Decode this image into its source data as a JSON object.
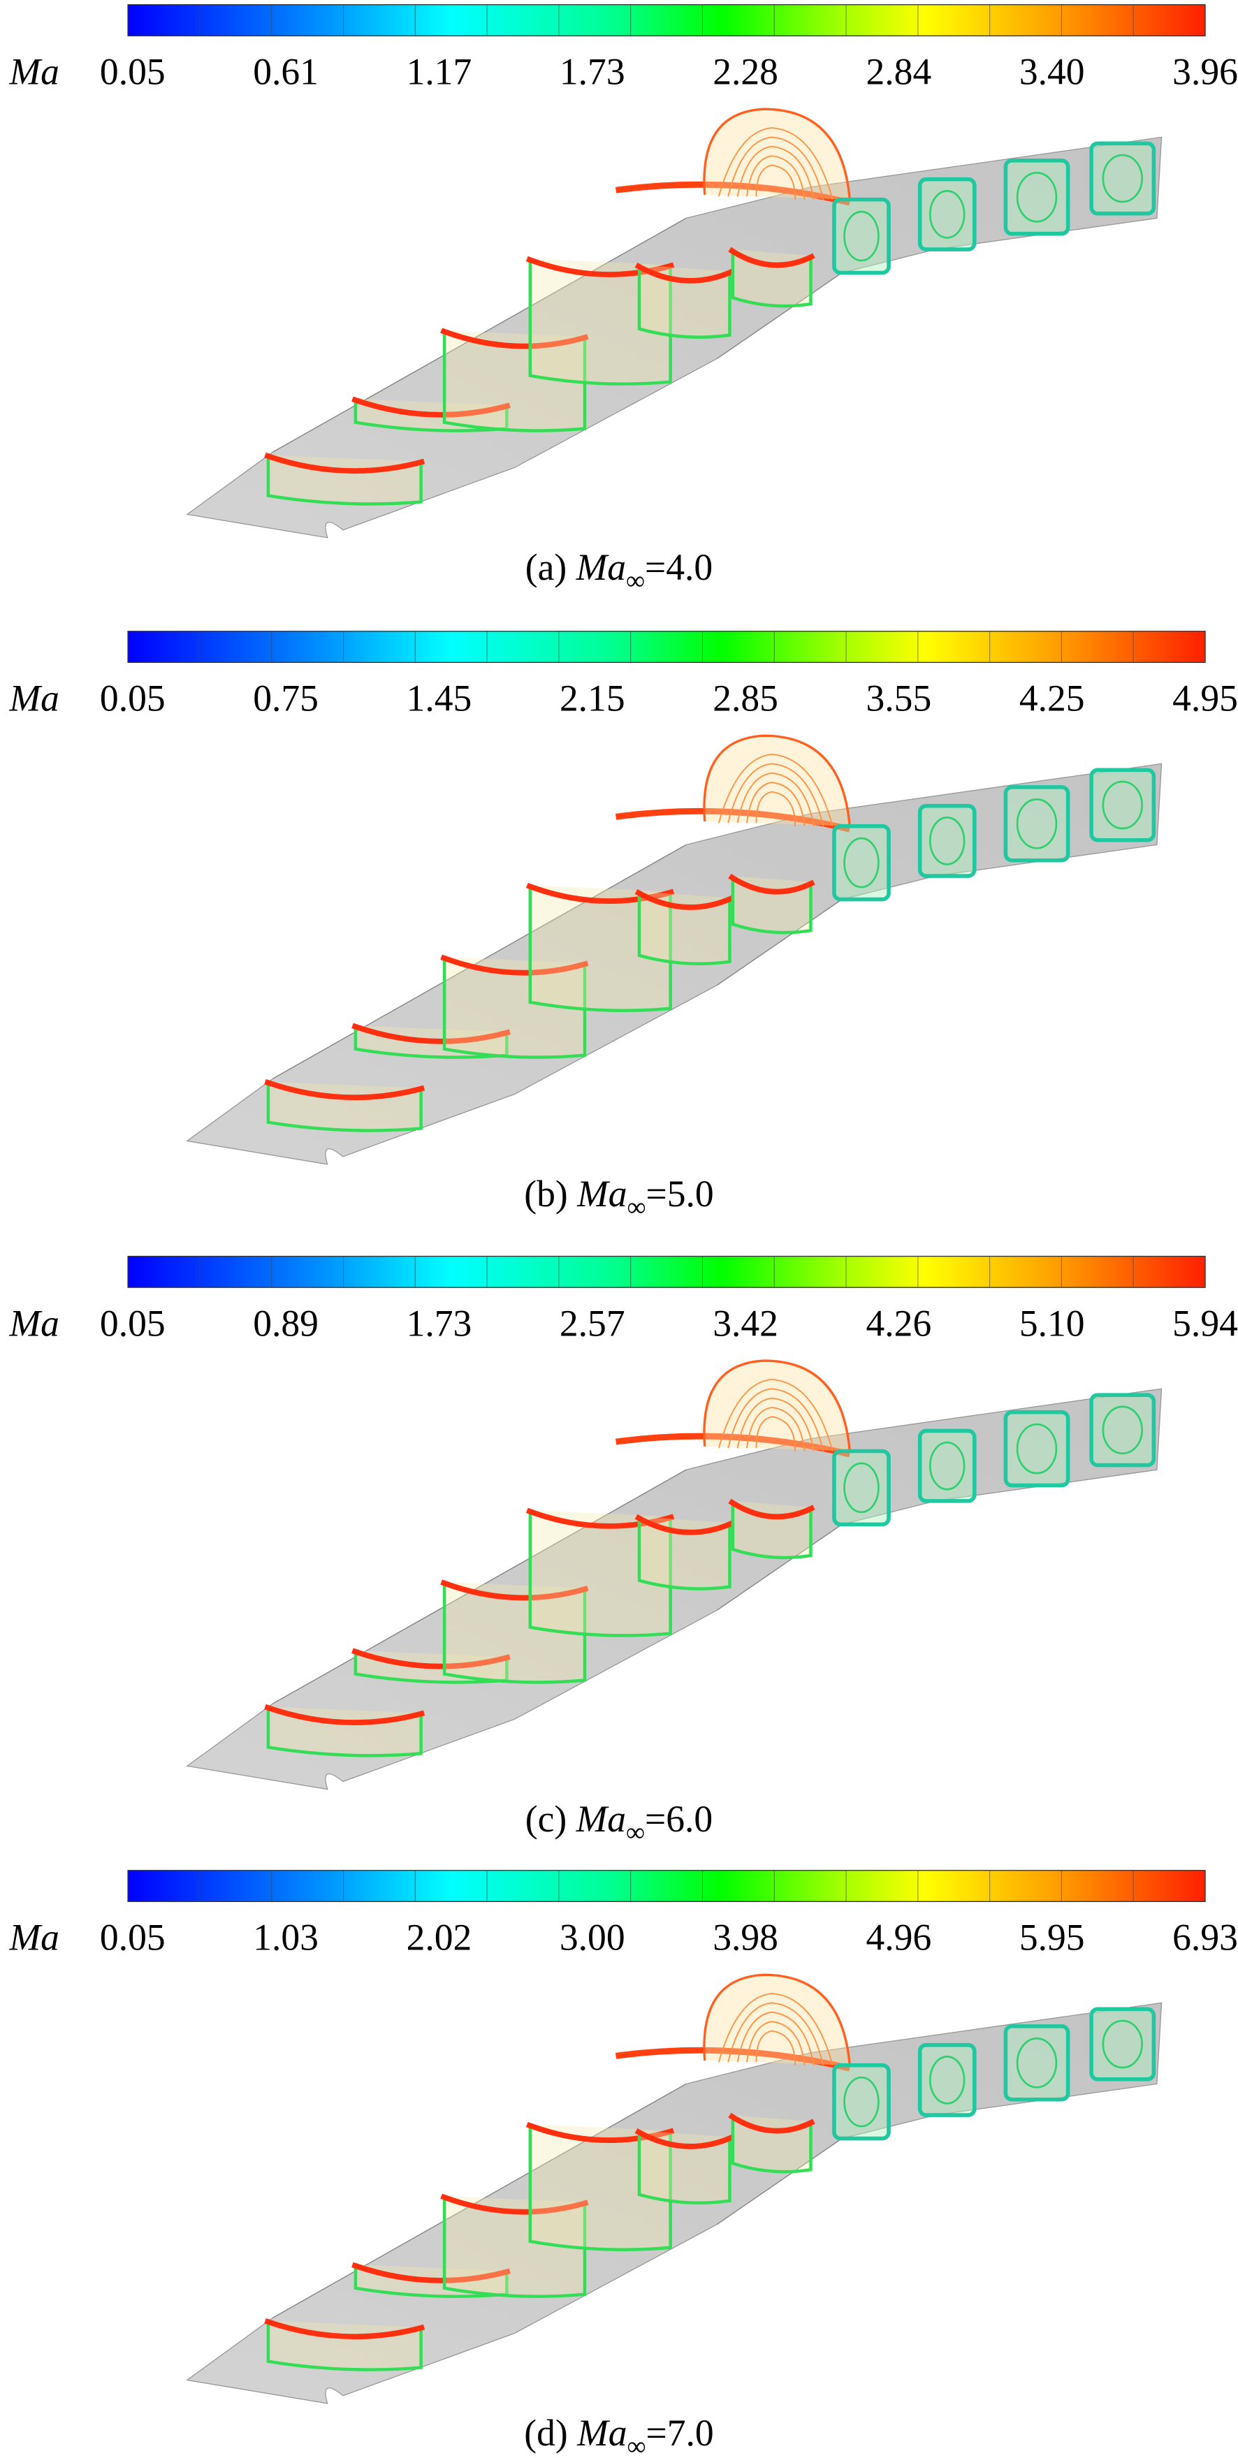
{
  "panels": [
    {
      "colorbar": {
        "label": "Ma",
        "ticks": [
          "0.05",
          "0.61",
          "1.17",
          "1.73",
          "2.28",
          "2.84",
          "3.40",
          "3.96"
        ]
      },
      "caption": {
        "prefix": "(a)",
        "variable": "Ma",
        "subscript": "∞",
        "suffix": "=4.0"
      }
    },
    {
      "colorbar": {
        "label": "Ma",
        "ticks": [
          "0.05",
          "0.75",
          "1.45",
          "2.15",
          "2.85",
          "3.55",
          "4.25",
          "4.95"
        ]
      },
      "caption": {
        "prefix": "(b)",
        "variable": "Ma",
        "subscript": "∞",
        "suffix": "=5.0"
      }
    },
    {
      "colorbar": {
        "label": "Ma",
        "ticks": [
          "0.05",
          "0.89",
          "1.73",
          "2.57",
          "3.42",
          "4.26",
          "5.10",
          "5.94"
        ]
      },
      "caption": {
        "prefix": "(c)",
        "variable": "Ma",
        "subscript": "∞",
        "suffix": "=6.0"
      }
    },
    {
      "colorbar": {
        "label": "Ma",
        "ticks": [
          "0.05",
          "1.03",
          "2.02",
          "3.00",
          "3.98",
          "4.96",
          "5.95",
          "6.93"
        ]
      },
      "caption": {
        "prefix": "(d)",
        "variable": "Ma",
        "subscript": "∞",
        "suffix": "=7.0"
      }
    }
  ]
}
